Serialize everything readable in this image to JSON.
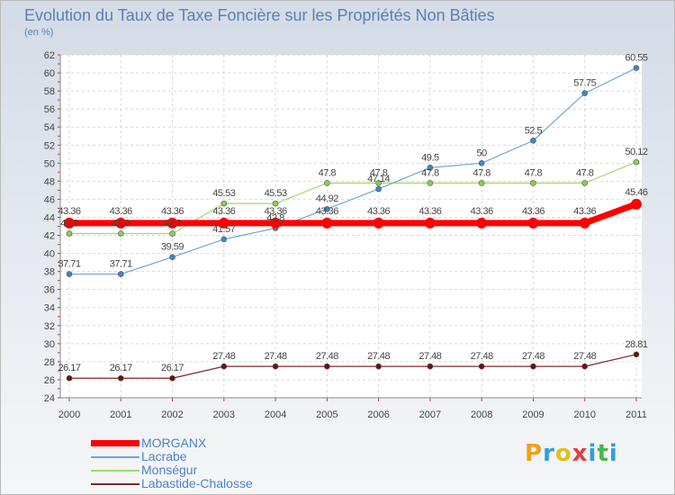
{
  "title": "Evolution du Taux de Taxe Foncière sur les Propriétés Non Bâties",
  "subtitle": "(en %)",
  "logo": {
    "text": "Proxiti",
    "colors": [
      "#f0a020",
      "#2f9ee0",
      "#e0c020",
      "#e04040",
      "#2f9ee0",
      "#48b848",
      "#2f9ee0"
    ]
  },
  "chart_data": {
    "type": "line",
    "x": [
      "2000",
      "2001",
      "2002",
      "2003",
      "2004",
      "2005",
      "2006",
      "2007",
      "2008",
      "2009",
      "2010",
      "2011"
    ],
    "ylim": [
      24,
      62
    ],
    "yticks": [
      24,
      26,
      28,
      30,
      32,
      34,
      36,
      38,
      40,
      42,
      44,
      46,
      48,
      50,
      52,
      54,
      56,
      58,
      60,
      62
    ],
    "grid": true,
    "legend_position": "bottom-left",
    "series": [
      {
        "name": "Labastide-Chalosse",
        "color": "#7b2a2a",
        "fill": "#6b1010",
        "width": 1.2,
        "radius": 3,
        "values": [
          26.17,
          26.17,
          26.17,
          27.48,
          27.48,
          27.48,
          27.48,
          27.48,
          27.48,
          27.48,
          27.48,
          28.81
        ],
        "labels": [
          "26.17",
          "26.17",
          "26.17",
          "27.48",
          "27.48",
          "27.48",
          "27.48",
          "27.48",
          "27.48",
          "27.48",
          "27.48",
          "28.81"
        ]
      },
      {
        "name": "Monségur",
        "color": "#99dd66",
        "fill": "#88d050",
        "width": 1.2,
        "radius": 3,
        "values": [
          42.2,
          42.2,
          42.2,
          45.53,
          45.53,
          47.8,
          47.8,
          47.8,
          47.8,
          47.8,
          47.8,
          50.12
        ],
        "labels": [
          "42.2",
          "42.2",
          "42.2",
          "45.53",
          "45.53",
          "47.8",
          "47.8",
          "47.8",
          "47.8",
          "47.8",
          "47.8",
          "50.12"
        ]
      },
      {
        "name": "Lacrabe",
        "color": "#6ea6d8",
        "fill": "#3f86c8",
        "width": 1.2,
        "radius": 3,
        "values": [
          37.71,
          37.71,
          39.59,
          41.57,
          42.8,
          44.92,
          47.14,
          49.5,
          50,
          52.5,
          57.75,
          60.55
        ],
        "labels": [
          "37.71",
          "37.71",
          "39.59",
          "41.57",
          "42.8",
          "44.92",
          "47.14",
          "49.5",
          "50",
          "52.5",
          "57.75",
          "60.55"
        ]
      },
      {
        "name": "MORGANX",
        "color": "#ff0000",
        "fill": "#ff0000",
        "width": 7,
        "radius": 6,
        "values": [
          43.36,
          43.36,
          43.36,
          43.36,
          43.36,
          43.36,
          43.36,
          43.36,
          43.36,
          43.36,
          43.36,
          45.46
        ],
        "labels": [
          "43.36",
          "43.36",
          "43.36",
          "43.36",
          "43.36",
          "43.36",
          "43.36",
          "43.36",
          "43.36",
          "43.36",
          "43.36",
          "45.46"
        ]
      }
    ],
    "legend": [
      "MORGANX",
      "Lacrabe",
      "Monségur",
      "Labastide-Chalosse"
    ]
  }
}
